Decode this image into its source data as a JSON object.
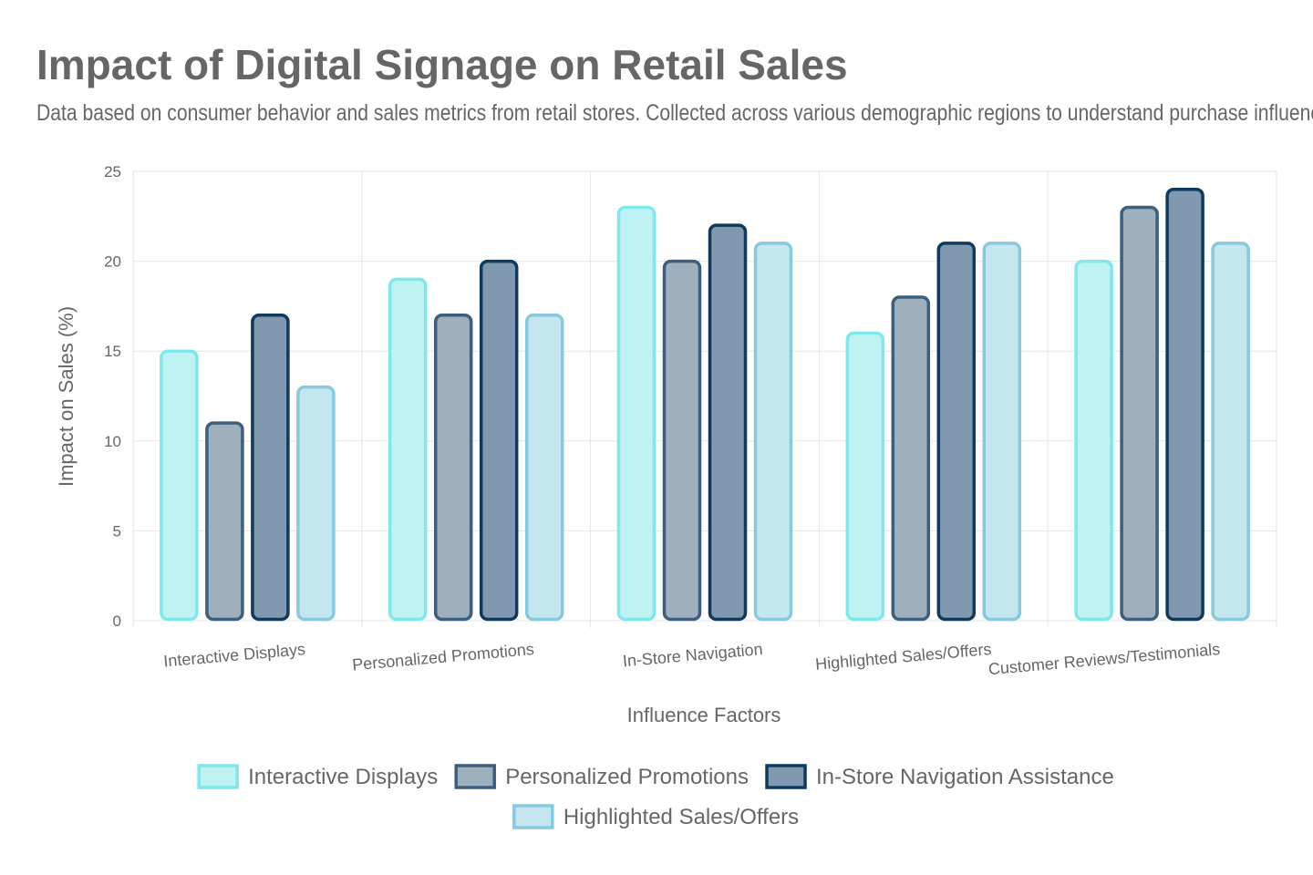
{
  "header": {
    "title": "Impact of Digital Signage on Retail Sales",
    "subtitle": "Data based on consumer behavior and sales metrics from retail stores. Collected across various demographic regions to understand purchase influences."
  },
  "chart_data": {
    "type": "bar",
    "title": "Impact of Digital Signage on Retail Sales",
    "xlabel": "Influence Factors",
    "ylabel": "Impact on Sales (%)",
    "ylim": [
      0,
      25
    ],
    "y_ticks": [
      0,
      5,
      10,
      15,
      20,
      25
    ],
    "grid": true,
    "legend_position": "bottom",
    "categories": [
      "Interactive Displays",
      "Personalized Promotions",
      "In-Store Navigation",
      "Highlighted Sales/Offers",
      "Customer Reviews/Testimonials"
    ],
    "series": [
      {
        "name": "Interactive Displays",
        "values": [
          15,
          19,
          23,
          16,
          20
        ],
        "fill": "#bff3f3",
        "stroke": "#7ee8ea"
      },
      {
        "name": "Personalized Promotions",
        "values": [
          11,
          17,
          20,
          18,
          23
        ],
        "fill": "#9eafbe",
        "stroke": "#3d5e7c"
      },
      {
        "name": "In-Store Navigation Assistance",
        "values": [
          17,
          20,
          22,
          21,
          24
        ],
        "fill": "#8199b0",
        "stroke": "#0e3a5e"
      },
      {
        "name": "Highlighted Sales/Offers",
        "values": [
          13,
          17,
          21,
          21,
          21
        ],
        "fill": "#c4e6ef",
        "stroke": "#86cadc"
      }
    ]
  }
}
